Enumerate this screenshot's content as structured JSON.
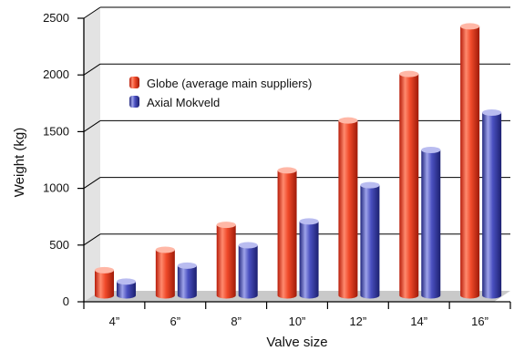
{
  "chart_data": {
    "type": "bar",
    "title": "",
    "xlabel": "Valve size",
    "ylabel": "Weight (kg)",
    "categories": [
      "4”",
      "6”",
      "8”",
      "10”",
      "12”",
      "14”",
      "16”"
    ],
    "ylim": [
      0,
      2500
    ],
    "yticks": [
      "0",
      "500",
      "1000",
      "1500",
      "2000",
      "2500"
    ],
    "grid": true,
    "legend_position": "top-left",
    "series": [
      {
        "name": "Globe (average main suppliers)",
        "color": "#e8351a",
        "values": [
          230,
          410,
          630,
          1110,
          1550,
          1960,
          2380
        ]
      },
      {
        "name": "Axial Mokveld",
        "color": "#3a3fae",
        "values": [
          130,
          270,
          450,
          660,
          980,
          1290,
          1620
        ]
      }
    ]
  }
}
